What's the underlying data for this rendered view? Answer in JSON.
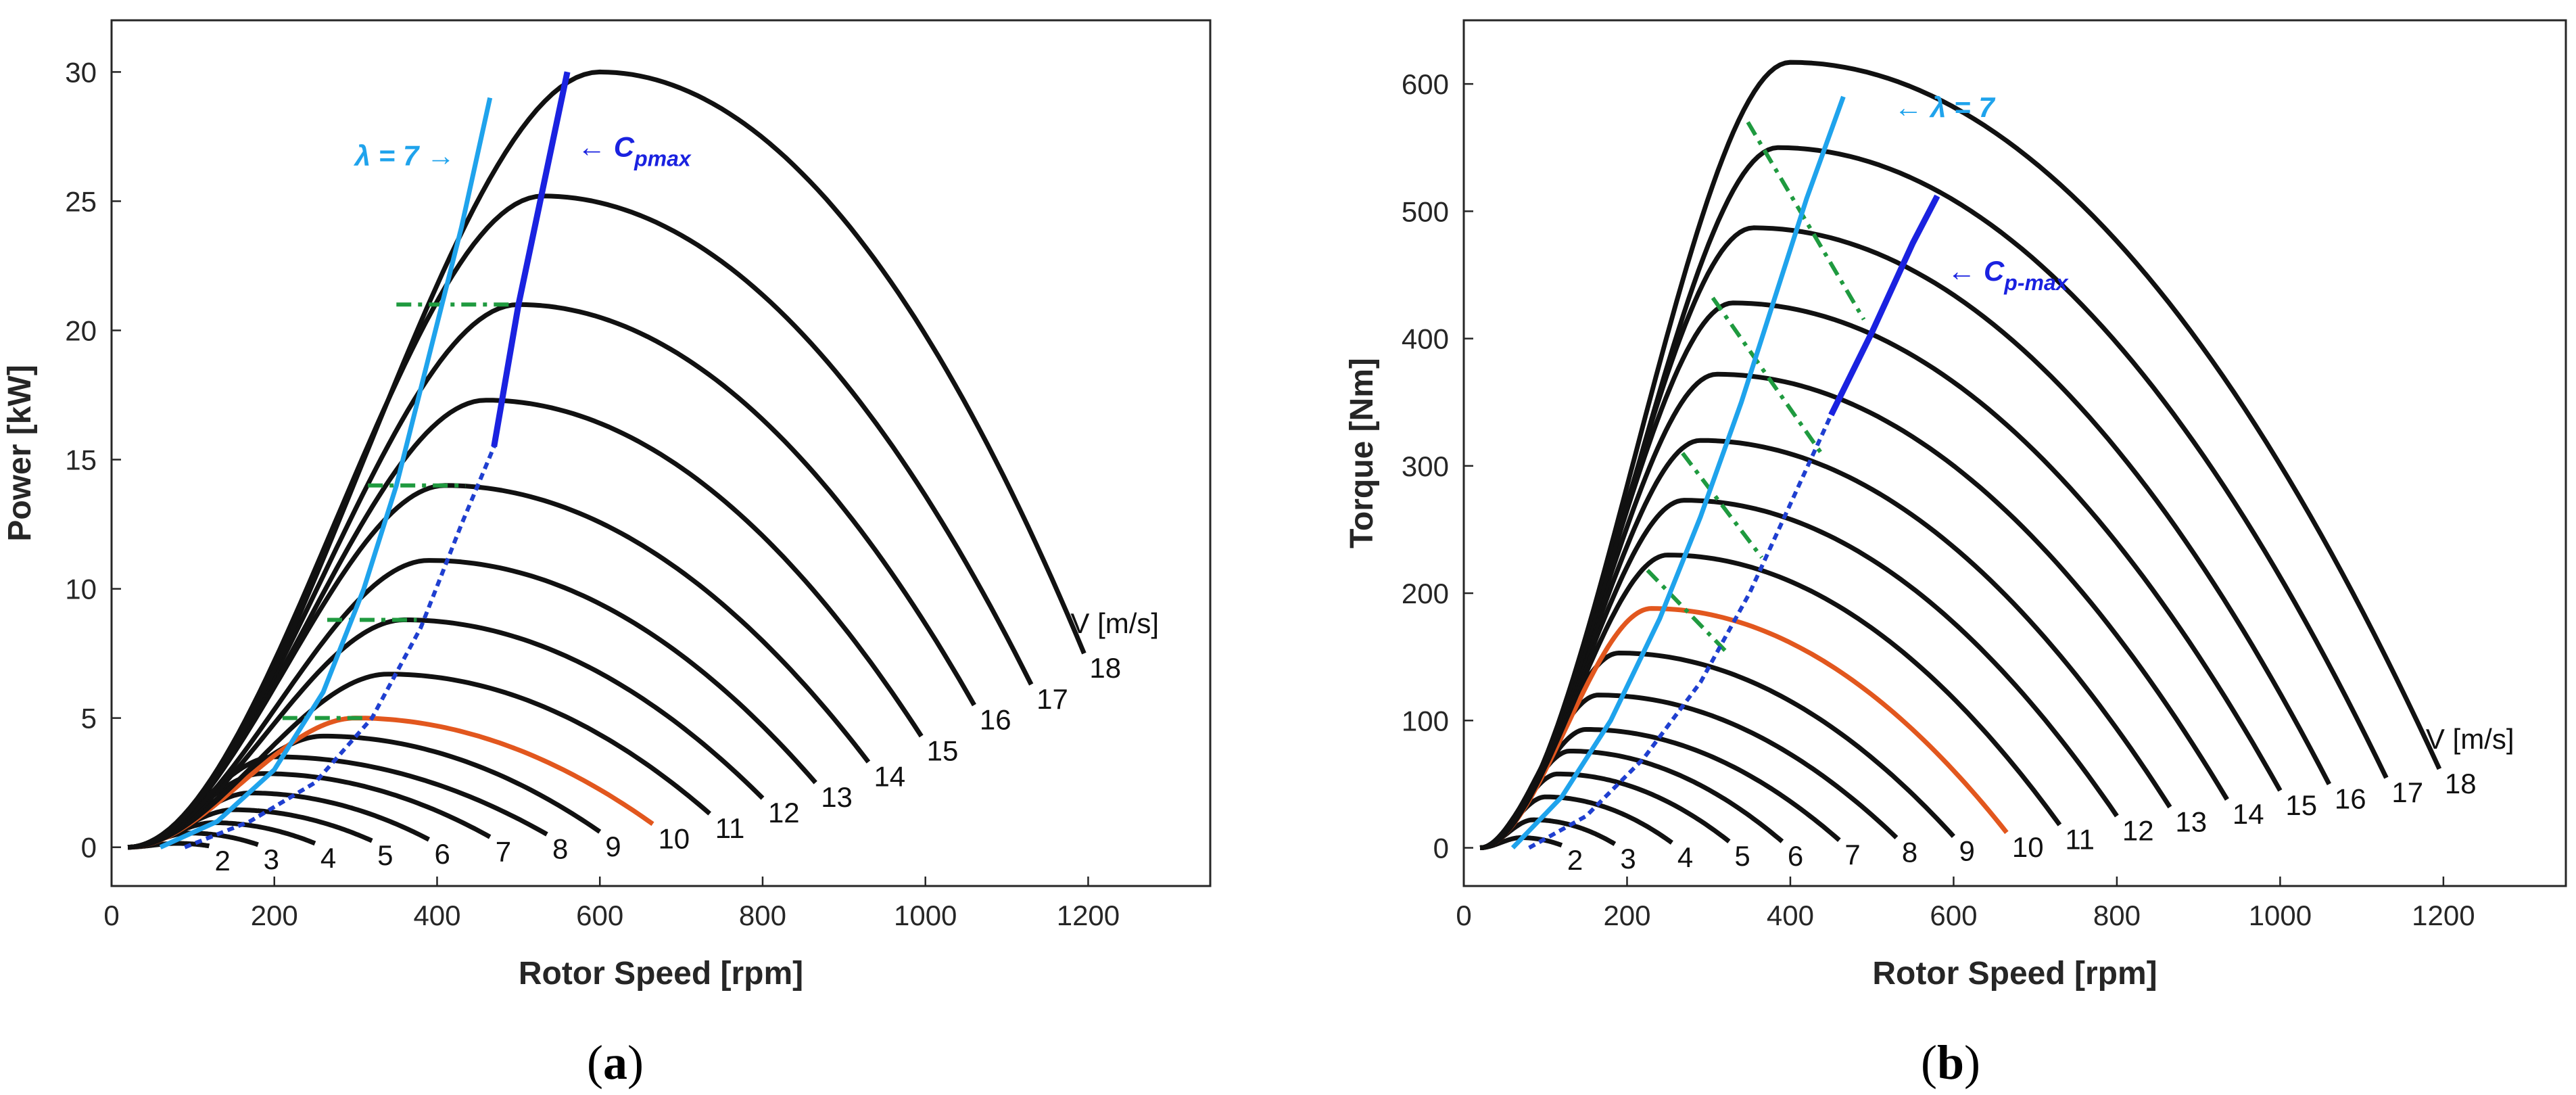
{
  "chart_data": [
    {
      "type": "line",
      "panel": "(a)",
      "panel_letter": "a",
      "xlabel": "Rotor Speed [rpm]",
      "ylabel": "Power [kW]",
      "xlim": [
        0,
        1350
      ],
      "ylim": [
        -1.5,
        32
      ],
      "xticks": [
        0,
        200,
        400,
        600,
        800,
        1000,
        1200
      ],
      "yticks": [
        0,
        5,
        10,
        15,
        20,
        25,
        30
      ],
      "legend_title": "V [m/s]",
      "highlight_speed": 10,
      "series": [
        {
          "name": "2",
          "peak_x": 80,
          "peak_y": 0.15,
          "end_x": 120,
          "end_y": 0.05
        },
        {
          "name": "3",
          "peak_x": 95,
          "peak_y": 0.55,
          "end_x": 180,
          "end_y": 0.1
        },
        {
          "name": "4",
          "peak_x": 125,
          "peak_y": 0.95,
          "end_x": 250,
          "end_y": 0.15
        },
        {
          "name": "5",
          "peak_x": 150,
          "peak_y": 1.45,
          "end_x": 320,
          "end_y": 0.25
        },
        {
          "name": "6",
          "peak_x": 170,
          "peak_y": 2.1,
          "end_x": 390,
          "end_y": 0.3
        },
        {
          "name": "7",
          "peak_x": 185,
          "peak_y": 2.85,
          "end_x": 465,
          "end_y": 0.4
        },
        {
          "name": "8",
          "peak_x": 200,
          "peak_y": 3.5,
          "end_x": 535,
          "end_y": 0.5
        },
        {
          "name": "9",
          "peak_x": 260,
          "peak_y": 4.3,
          "end_x": 600,
          "end_y": 0.6
        },
        {
          "name": "10",
          "peak_x": 300,
          "peak_y": 5.0,
          "end_x": 665,
          "end_y": 0.9
        },
        {
          "name": "11",
          "peak_x": 340,
          "peak_y": 6.7,
          "end_x": 735,
          "end_y": 1.3
        },
        {
          "name": "12",
          "peak_x": 360,
          "peak_y": 8.8,
          "end_x": 800,
          "end_y": 1.9
        },
        {
          "name": "13",
          "peak_x": 390,
          "peak_y": 11.1,
          "end_x": 865,
          "end_y": 2.5
        },
        {
          "name": "14",
          "peak_x": 410,
          "peak_y": 14.0,
          "end_x": 930,
          "end_y": 3.3
        },
        {
          "name": "15",
          "peak_x": 460,
          "peak_y": 17.3,
          "end_x": 995,
          "end_y": 4.3
        },
        {
          "name": "16",
          "peak_x": 500,
          "peak_y": 21.0,
          "end_x": 1060,
          "end_y": 5.5
        },
        {
          "name": "17",
          "peak_x": 530,
          "peak_y": 25.2,
          "end_x": 1130,
          "end_y": 6.3
        },
        {
          "name": "18",
          "peak_x": 600,
          "peak_y": 30.0,
          "end_x": 1195,
          "end_y": 7.5
        }
      ],
      "lambda_line": {
        "label": "λ = 7",
        "x": [
          60,
          130,
          200,
          260,
          310,
          350,
          390,
          430,
          465
        ],
        "y": [
          0,
          1,
          3,
          6,
          10,
          14,
          19,
          24,
          29
        ]
      },
      "cp_line": {
        "label_main": "C",
        "label_sub": "pmax",
        "x": [
          90,
          170,
          250,
          320,
          380,
          430,
          470,
          500,
          530,
          560
        ],
        "y": [
          0,
          1,
          2.5,
          5,
          8.5,
          12.5,
          15.5,
          21,
          25.5,
          30
        ]
      },
      "green_segments": [
        {
          "x": [
            210,
            310
          ],
          "y": [
            5,
            5
          ]
        },
        {
          "x": [
            265,
            375
          ],
          "y": [
            8.8,
            8.8
          ]
        },
        {
          "x": [
            315,
            435
          ],
          "y": [
            14,
            14
          ]
        },
        {
          "x": [
            350,
            500
          ],
          "y": [
            21,
            21
          ]
        }
      ]
    },
    {
      "type": "line",
      "panel": "(b)",
      "panel_letter": "b",
      "xlabel": "Rotor Speed [rpm]",
      "ylabel": "Torque [Nm]",
      "xlim": [
        0,
        1350
      ],
      "ylim": [
        -30,
        650
      ],
      "xticks": [
        0,
        200,
        400,
        600,
        800,
        1000,
        1200
      ],
      "yticks": [
        0,
        100,
        200,
        300,
        400,
        500,
        600
      ],
      "legend_title": "V [m/s]",
      "highlight_speed": 10,
      "series": [
        {
          "name": "2",
          "peak_x": 70,
          "peak_y": 8,
          "end_x": 120,
          "end_y": 2
        },
        {
          "name": "3",
          "peak_x": 85,
          "peak_y": 22,
          "end_x": 185,
          "end_y": 3
        },
        {
          "name": "4",
          "peak_x": 100,
          "peak_y": 40,
          "end_x": 255,
          "end_y": 4
        },
        {
          "name": "5",
          "peak_x": 115,
          "peak_y": 58,
          "end_x": 325,
          "end_y": 5
        },
        {
          "name": "6",
          "peak_x": 130,
          "peak_y": 76,
          "end_x": 390,
          "end_y": 5
        },
        {
          "name": "7",
          "peak_x": 150,
          "peak_y": 93,
          "end_x": 460,
          "end_y": 6
        },
        {
          "name": "8",
          "peak_x": 165,
          "peak_y": 120,
          "end_x": 530,
          "end_y": 8
        },
        {
          "name": "9",
          "peak_x": 190,
          "peak_y": 153,
          "end_x": 600,
          "end_y": 9
        },
        {
          "name": "10",
          "peak_x": 230,
          "peak_y": 188,
          "end_x": 665,
          "end_y": 12
        },
        {
          "name": "11",
          "peak_x": 250,
          "peak_y": 230,
          "end_x": 730,
          "end_y": 18
        },
        {
          "name": "12",
          "peak_x": 270,
          "peak_y": 273,
          "end_x": 800,
          "end_y": 25
        },
        {
          "name": "13",
          "peak_x": 290,
          "peak_y": 320,
          "end_x": 865,
          "end_y": 32
        },
        {
          "name": "14",
          "peak_x": 310,
          "peak_y": 372,
          "end_x": 935,
          "end_y": 38
        },
        {
          "name": "15",
          "peak_x": 330,
          "peak_y": 428,
          "end_x": 1000,
          "end_y": 45
        },
        {
          "name": "16",
          "peak_x": 355,
          "peak_y": 487,
          "end_x": 1060,
          "end_y": 50
        },
        {
          "name": "17",
          "peak_x": 385,
          "peak_y": 550,
          "end_x": 1130,
          "end_y": 55
        },
        {
          "name": "18",
          "peak_x": 400,
          "peak_y": 617,
          "end_x": 1195,
          "end_y": 62
        }
      ],
      "lambda_line": {
        "label": "λ = 7",
        "x": [
          60,
          120,
          180,
          240,
          290,
          340,
          380,
          420,
          465
        ],
        "y": [
          0,
          40,
          100,
          180,
          260,
          350,
          430,
          510,
          590
        ]
      },
      "cp_line": {
        "label_main": "C",
        "label_sub": "p-max",
        "x": [
          80,
          150,
          220,
          290,
          350,
          400,
          450,
          500,
          550,
          580
        ],
        "y": [
          0,
          25,
          70,
          130,
          200,
          270,
          340,
          405,
          475,
          512
        ]
      },
      "green_segments": [
        {
          "x": [
            225,
            320
          ],
          "y": [
            218,
            155
          ]
        },
        {
          "x": [
            268,
            365
          ],
          "y": [
            310,
            228
          ]
        },
        {
          "x": [
            305,
            440
          ],
          "y": [
            432,
            308
          ]
        },
        {
          "x": [
            348,
            490
          ],
          "y": [
            570,
            415
          ]
        }
      ]
    }
  ]
}
